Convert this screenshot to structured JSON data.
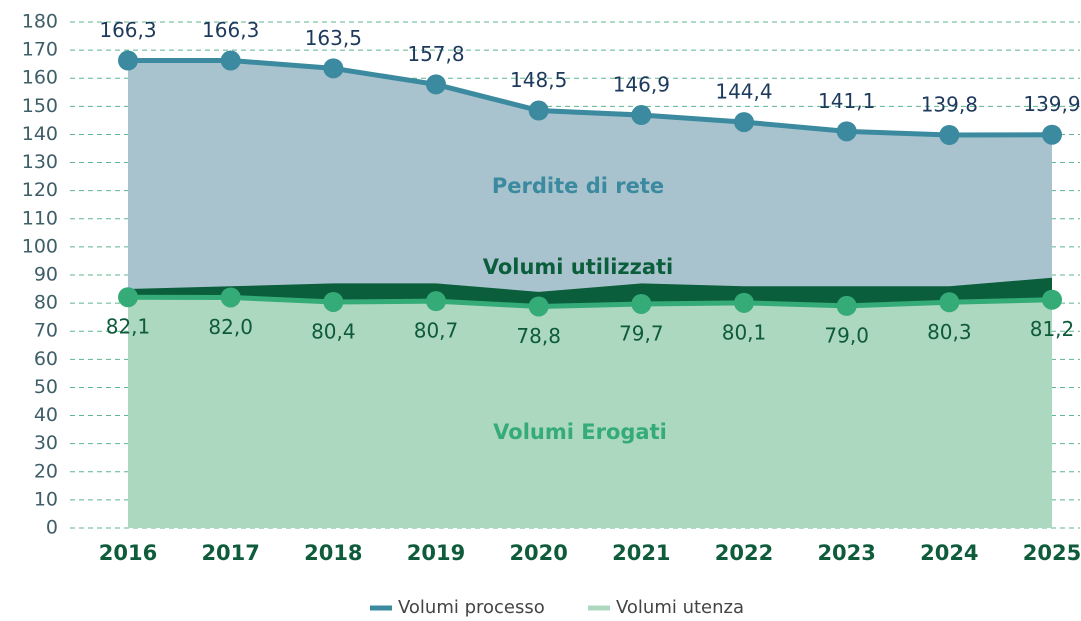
{
  "chart_data": {
    "type": "area",
    "categories": [
      "2016",
      "2017",
      "2018",
      "2019",
      "2020",
      "2021",
      "2022",
      "2023",
      "2024",
      "2025"
    ],
    "series": [
      {
        "name": "Volumi processo",
        "color": "#3b8a9f",
        "fill": "#a9c3ce",
        "label_color": "#1d3a5c",
        "area_label": "Perdite di rete",
        "values": [
          166.3,
          166.3,
          163.5,
          157.8,
          148.5,
          146.9,
          144.4,
          141.1,
          139.8,
          139.9
        ],
        "value_labels": [
          "166,3",
          "166,3",
          "163,5",
          "157,8",
          "148,5",
          "146,9",
          "144,4",
          "141,1",
          "139,8",
          "139,9"
        ]
      },
      {
        "name": "Volumi utenza",
        "color": "#35ab78",
        "fill": "#acd8c0",
        "label_color": "#0e5a3a",
        "area_label": "Volumi Erogati",
        "values": [
          82.1,
          82.0,
          80.4,
          80.7,
          78.8,
          79.7,
          80.1,
          79.0,
          80.3,
          81.2
        ],
        "value_labels": [
          "82,1",
          "82,0",
          "80,4",
          "80,7",
          "78,8",
          "79,7",
          "80,1",
          "79,0",
          "80,3",
          "81,2"
        ]
      }
    ],
    "band": {
      "label": "Volumi utilizzati",
      "color": "#0b5e3b",
      "values": [
        85,
        86,
        87,
        87,
        84,
        87,
        86,
        86,
        86,
        89
      ]
    },
    "ylim": [
      0,
      180
    ],
    "yticks": [
      0,
      10,
      20,
      30,
      40,
      50,
      60,
      70,
      80,
      90,
      100,
      110,
      120,
      130,
      140,
      150,
      160,
      170,
      180
    ],
    "grid": true
  }
}
